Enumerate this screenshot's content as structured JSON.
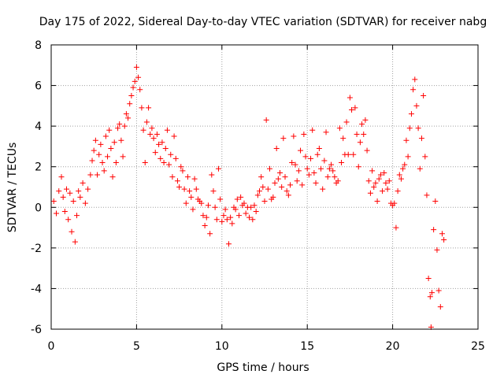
{
  "chart_data": {
    "type": "scatter",
    "title": "Day 175 of 2022, Sidereal Day-to-day VTEC variation (SDTVAR) for receiver nabg",
    "xlabel": "GPS time / hours",
    "ylabel": "SDTVAR / TECUs",
    "xlim": [
      0,
      25
    ],
    "ylim": [
      -6,
      8
    ],
    "xticks": [
      0,
      5,
      10,
      15,
      20,
      25
    ],
    "yticks": [
      -6,
      -4,
      -2,
      0,
      2,
      4,
      6,
      8
    ],
    "xtick_labels": [
      "0",
      "5",
      "10",
      "15",
      "20",
      "25"
    ],
    "ytick_labels": [
      "-6",
      "-4",
      "-2",
      "0",
      "2",
      "4",
      "6",
      "8"
    ],
    "grid": true,
    "marker": "+",
    "series": [
      {
        "name": "SDTVAR",
        "color": "#ff0000",
        "x": [
          0.15,
          0.3,
          0.45,
          0.6,
          0.7,
          0.8,
          0.9,
          1.0,
          1.1,
          1.2,
          1.3,
          1.4,
          1.5,
          1.6,
          1.7,
          1.85,
          2.0,
          2.15,
          2.3,
          2.4,
          2.5,
          2.6,
          2.7,
          2.8,
          2.9,
          3.0,
          3.1,
          3.2,
          3.3,
          3.4,
          3.5,
          3.6,
          3.7,
          3.8,
          3.9,
          4.0,
          4.1,
          4.2,
          4.3,
          4.4,
          4.5,
          4.6,
          4.7,
          4.8,
          4.9,
          5.0,
          5.1,
          5.2,
          5.3,
          5.4,
          5.5,
          5.6,
          5.7,
          5.8,
          5.9,
          6.0,
          6.1,
          6.2,
          6.3,
          6.4,
          6.5,
          6.6,
          6.7,
          6.8,
          6.9,
          7.0,
          7.1,
          7.2,
          7.3,
          7.4,
          7.5,
          7.6,
          7.7,
          7.8,
          7.9,
          8.0,
          8.1,
          8.2,
          8.3,
          8.4,
          8.5,
          8.6,
          8.7,
          8.8,
          8.9,
          9.0,
          9.1,
          9.2,
          9.3,
          9.4,
          9.5,
          9.6,
          9.7,
          9.8,
          9.9,
          10.0,
          10.1,
          10.2,
          10.3,
          10.4,
          10.5,
          10.6,
          10.7,
          10.8,
          10.9,
          11.0,
          11.1,
          11.2,
          11.3,
          11.4,
          11.5,
          11.6,
          11.7,
          11.8,
          11.9,
          12.0,
          12.1,
          12.2,
          12.3,
          12.4,
          12.5,
          12.6,
          12.7,
          12.8,
          12.9,
          13.0,
          13.1,
          13.2,
          13.3,
          13.4,
          13.5,
          13.6,
          13.7,
          13.8,
          13.9,
          14.0,
          14.1,
          14.2,
          14.3,
          14.4,
          14.5,
          14.6,
          14.7,
          14.8,
          14.9,
          15.0,
          15.1,
          15.2,
          15.3,
          15.4,
          15.5,
          15.6,
          15.7,
          15.8,
          15.9,
          16.0,
          16.1,
          16.2,
          16.3,
          16.4,
          16.5,
          16.6,
          16.7,
          16.8,
          16.9,
          17.0,
          17.1,
          17.2,
          17.3,
          17.4,
          17.5,
          17.6,
          17.7,
          17.8,
          17.9,
          18.0,
          18.1,
          18.2,
          18.3,
          18.4,
          18.5,
          18.6,
          18.7,
          18.8,
          18.9,
          19.0,
          19.1,
          19.2,
          19.3,
          19.4,
          19.5,
          19.6,
          19.7,
          19.8,
          19.9,
          20.0,
          20.1,
          20.2,
          20.3,
          20.4,
          20.5,
          20.6,
          20.7,
          20.8,
          20.9,
          21.0,
          21.1,
          21.2,
          21.3,
          21.4,
          21.5,
          21.6,
          21.7,
          21.8,
          21.9,
          22.0,
          22.1,
          22.2,
          22.25,
          22.3,
          22.4,
          22.5,
          22.6,
          22.7,
          22.8,
          22.9,
          23.0
        ],
        "y": [
          0.3,
          -0.3,
          0.8,
          1.5,
          0.5,
          -0.2,
          0.9,
          -0.6,
          0.7,
          -1.2,
          0.3,
          -1.7,
          -0.4,
          0.8,
          0.5,
          1.2,
          0.2,
          0.9,
          1.6,
          2.3,
          2.8,
          3.3,
          1.6,
          2.6,
          3.1,
          2.2,
          1.8,
          3.5,
          2.5,
          3.8,
          2.9,
          1.5,
          3.2,
          2.2,
          3.9,
          4.1,
          3.3,
          2.5,
          4.0,
          4.6,
          4.4,
          5.1,
          5.5,
          5.9,
          6.2,
          6.9,
          6.4,
          5.8,
          4.9,
          3.8,
          2.2,
          4.2,
          4.9,
          3.6,
          3.9,
          3.4,
          2.7,
          3.6,
          3.1,
          2.4,
          3.2,
          2.2,
          2.9,
          3.8,
          2.1,
          2.6,
          1.5,
          3.5,
          2.4,
          1.3,
          1.0,
          2.0,
          1.8,
          0.9,
          0.2,
          1.5,
          0.8,
          0.5,
          -0.1,
          1.4,
          0.9,
          0.4,
          0.3,
          0.2,
          -0.4,
          -0.9,
          -0.5,
          0.1,
          -1.3,
          1.6,
          0.8,
          0.0,
          -0.6,
          1.9,
          0.4,
          -0.7,
          -0.4,
          -0.1,
          -0.6,
          -1.8,
          -0.5,
          -0.8,
          0.0,
          -0.1,
          0.4,
          -0.4,
          0.5,
          0.1,
          0.2,
          -0.3,
          0.0,
          -0.5,
          0.0,
          -0.6,
          0.1,
          -0.2,
          0.6,
          0.8,
          1.5,
          1.0,
          0.3,
          4.3,
          0.9,
          1.9,
          0.4,
          0.5,
          1.2,
          2.9,
          1.4,
          1.7,
          1.0,
          3.4,
          1.5,
          0.8,
          0.6,
          1.1,
          2.2,
          3.5,
          2.1,
          1.3,
          1.8,
          2.8,
          1.1,
          3.6,
          2.5,
          1.9,
          1.6,
          2.4,
          3.8,
          1.7,
          1.2,
          2.6,
          2.9,
          1.9,
          0.9,
          2.3,
          3.7,
          1.5,
          1.9,
          2.1,
          1.8,
          1.5,
          1.2,
          1.3,
          3.9,
          2.2,
          3.4,
          2.6,
          4.2,
          2.6,
          5.4,
          4.8,
          2.6,
          4.9,
          3.6,
          2.0,
          3.2,
          4.1,
          3.6,
          4.3,
          2.8,
          1.3,
          0.7,
          1.8,
          1.0,
          1.2,
          0.3,
          1.4,
          1.6,
          0.8,
          1.7,
          1.2,
          0.9,
          1.3,
          0.2,
          0.1,
          0.2,
          -1.0,
          0.8,
          1.6,
          1.4,
          1.9,
          2.1,
          3.3,
          2.5,
          3.9,
          4.6,
          5.8,
          6.3,
          5.0,
          3.9,
          1.9,
          3.4,
          5.5,
          2.5,
          0.6,
          -3.5,
          -4.4,
          -5.9,
          -4.2,
          -1.1,
          0.3,
          -2.1,
          -4.1,
          -4.9,
          -1.3,
          -1.6
        ]
      }
    ]
  }
}
